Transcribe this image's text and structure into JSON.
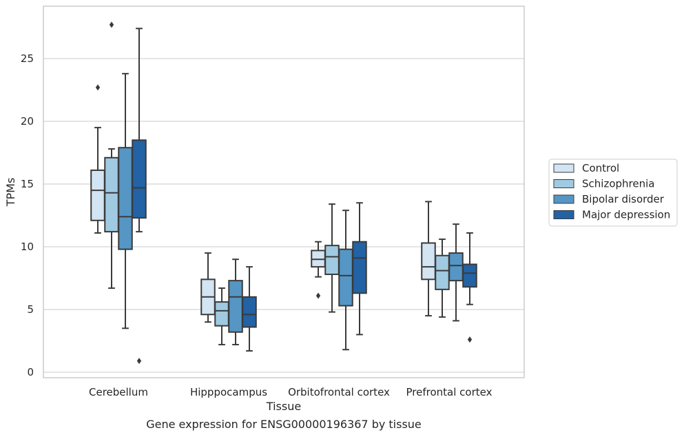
{
  "chart_data": {
    "type": "box",
    "caption": "Gene expression for ENSG00000196367 by tissue",
    "xlabel": "Tissue",
    "ylabel": "TPMs",
    "ylim": [
      -0.3,
      29
    ],
    "yticks": [
      0,
      5,
      10,
      15,
      20,
      25
    ],
    "grid": "horizontal",
    "legend_position": "right, outside plot",
    "categories": [
      "Cerebellum",
      "Hipppocampus",
      "Orbitofrontal cortex",
      "Prefrontal cortex"
    ],
    "series": [
      {
        "name": "Control",
        "color": "#d3e4f3",
        "boxes": [
          {
            "whisker_low": 11.1,
            "q1": 12.1,
            "median": 14.5,
            "q3": 16.1,
            "whisker_high": 19.5,
            "outliers": [
              22.7
            ]
          },
          {
            "whisker_low": 4.0,
            "q1": 4.6,
            "median": 6.0,
            "q3": 7.4,
            "whisker_high": 9.5,
            "outliers": []
          },
          {
            "whisker_low": 7.6,
            "q1": 8.4,
            "median": 9.0,
            "q3": 9.7,
            "whisker_high": 10.4,
            "outliers": [
              6.1
            ]
          },
          {
            "whisker_low": 4.5,
            "q1": 7.4,
            "median": 8.4,
            "q3": 10.3,
            "whisker_high": 13.6,
            "outliers": []
          }
        ]
      },
      {
        "name": "Schizophrenia",
        "color": "#a0cae1",
        "boxes": [
          {
            "whisker_low": 6.7,
            "q1": 11.2,
            "median": 14.3,
            "q3": 17.1,
            "whisker_high": 17.8,
            "outliers": [
              27.7
            ]
          },
          {
            "whisker_low": 2.2,
            "q1": 3.7,
            "median": 4.9,
            "q3": 5.6,
            "whisker_high": 6.7,
            "outliers": []
          },
          {
            "whisker_low": 4.8,
            "q1": 7.8,
            "median": 9.2,
            "q3": 10.1,
            "whisker_high": 13.4,
            "outliers": []
          },
          {
            "whisker_low": 4.4,
            "q1": 6.6,
            "median": 8.1,
            "q3": 9.3,
            "whisker_high": 10.6,
            "outliers": []
          }
        ]
      },
      {
        "name": "Bipolar disorder",
        "color": "#5596c5",
        "boxes": [
          {
            "whisker_low": 3.5,
            "q1": 9.8,
            "median": 12.4,
            "q3": 17.9,
            "whisker_high": 23.8,
            "outliers": []
          },
          {
            "whisker_low": 2.2,
            "q1": 3.2,
            "median": 6.0,
            "q3": 7.3,
            "whisker_high": 9.0,
            "outliers": []
          },
          {
            "whisker_low": 1.8,
            "q1": 5.3,
            "median": 7.7,
            "q3": 9.8,
            "whisker_high": 12.9,
            "outliers": []
          },
          {
            "whisker_low": 4.1,
            "q1": 7.3,
            "median": 8.5,
            "q3": 9.5,
            "whisker_high": 11.8,
            "outliers": []
          }
        ]
      },
      {
        "name": "Major depression",
        "color": "#2262a5",
        "boxes": [
          {
            "whisker_low": 11.2,
            "q1": 12.3,
            "median": 14.7,
            "q3": 18.5,
            "whisker_high": 27.4,
            "outliers": [
              0.9
            ]
          },
          {
            "whisker_low": 1.7,
            "q1": 3.6,
            "median": 4.6,
            "q3": 6.0,
            "whisker_high": 8.4,
            "outliers": []
          },
          {
            "whisker_low": 3.0,
            "q1": 6.3,
            "median": 9.1,
            "q3": 10.4,
            "whisker_high": 13.5,
            "outliers": []
          },
          {
            "whisker_low": 5.4,
            "q1": 6.8,
            "median": 7.9,
            "q3": 8.6,
            "whisker_high": 11.1,
            "outliers": [
              2.6
            ]
          }
        ]
      }
    ]
  }
}
